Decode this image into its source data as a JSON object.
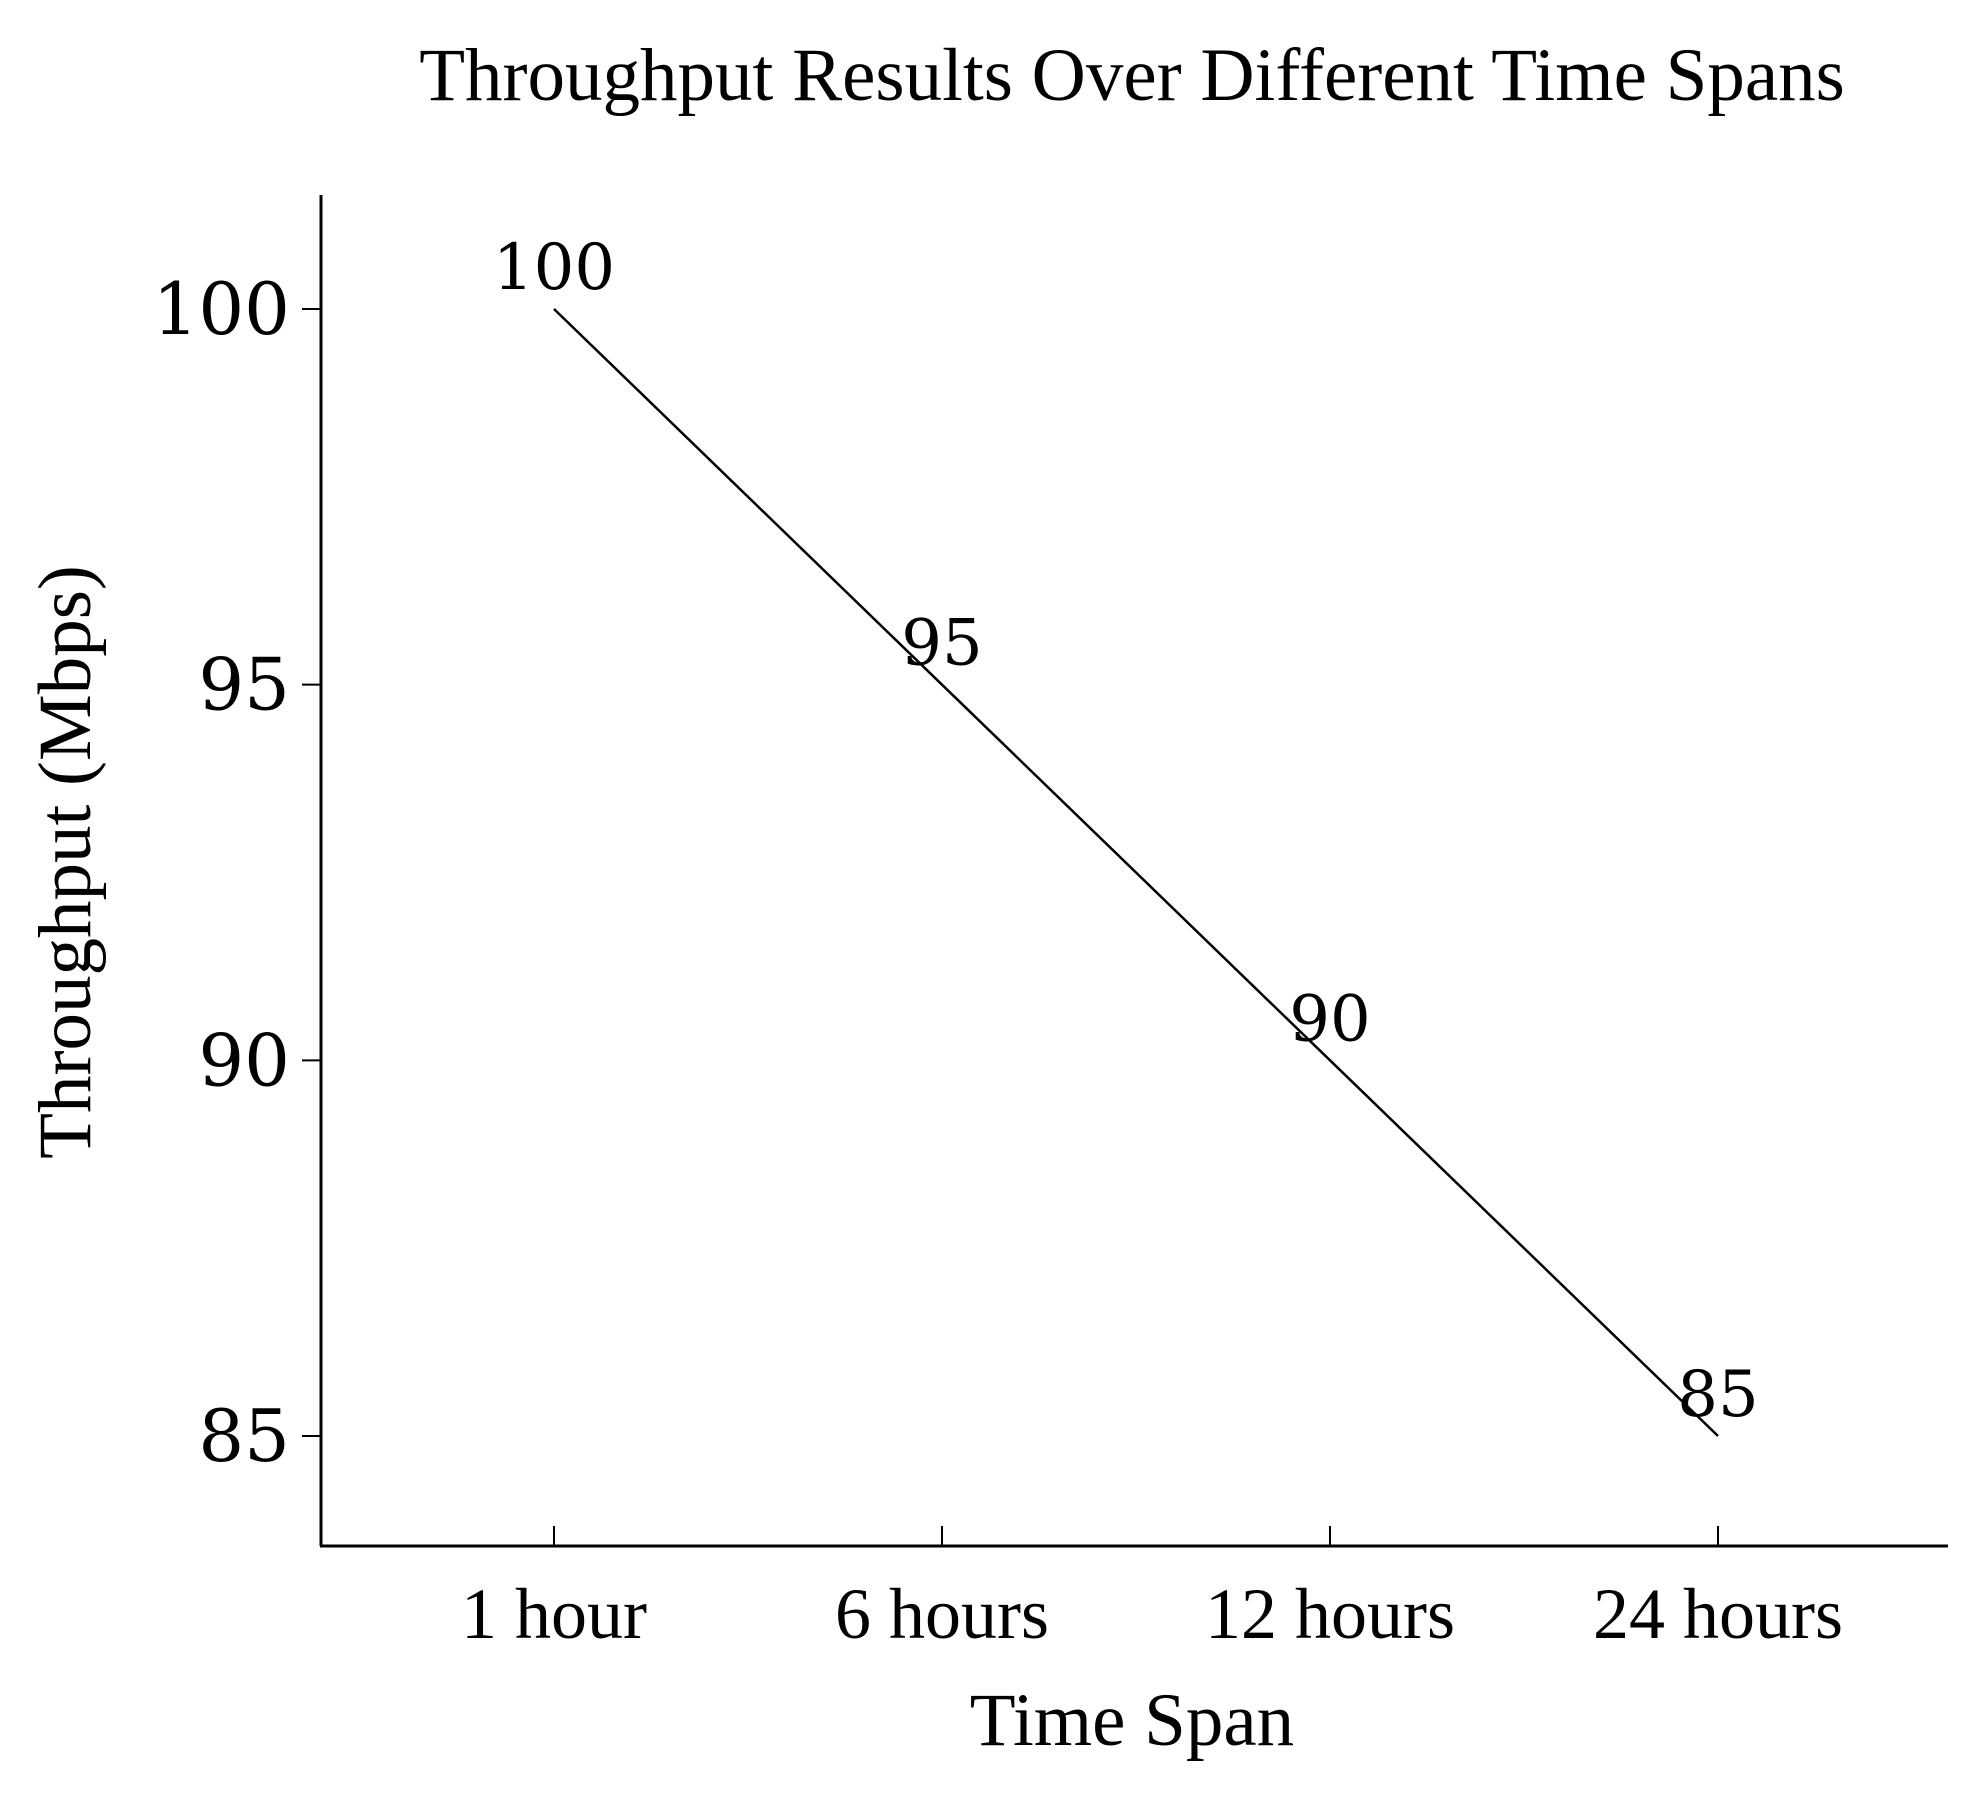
{
  "chart_data": {
    "type": "line",
    "title": "Throughput Results Over Different Time Spans",
    "xlabel": "Time Span",
    "ylabel": "Throughput (Mbps)",
    "categories": [
      "1 hour",
      "6 hours",
      "12 hours",
      "24 hours"
    ],
    "series": [
      {
        "values": [
          100,
          95,
          90,
          85
        ],
        "color": "#000000"
      }
    ],
    "data_labels": [
      "100",
      "95",
      "90",
      "85"
    ],
    "yticks": [
      85,
      90,
      95,
      100
    ],
    "ytick_labels": [
      "85",
      "90",
      "95",
      "100"
    ],
    "ylim": [
      83.5,
      101.5
    ],
    "grid": false,
    "legend": "none"
  }
}
